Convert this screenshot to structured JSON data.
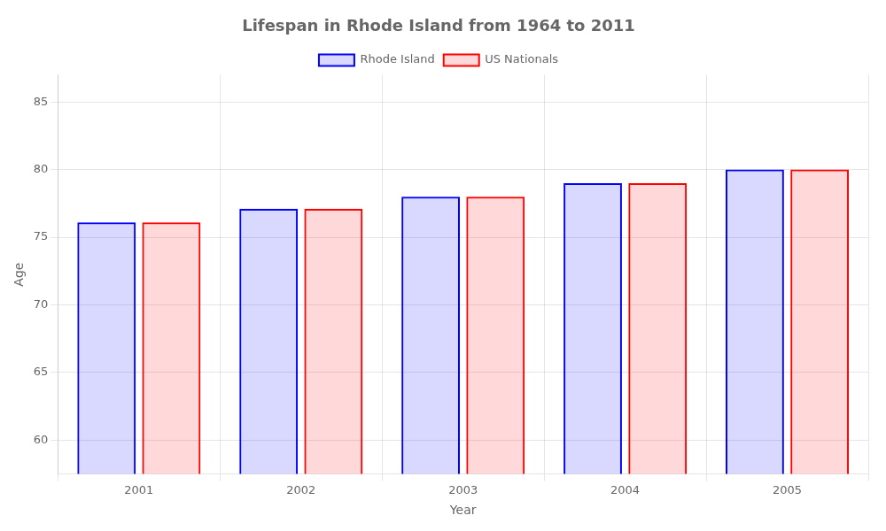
{
  "chart_data": {
    "type": "bar",
    "title": "Lifespan in Rhode Island from 1964 to 2011",
    "x_label": "Year",
    "y_label": "Age",
    "categories": [
      "2001",
      "2002",
      "2003",
      "2004",
      "2005"
    ],
    "series": [
      {
        "name": "Rhode Island",
        "color": "#0000ff",
        "values": [
          76.1,
          77.1,
          78.0,
          79.0,
          80.0
        ]
      },
      {
        "name": "US Nationals",
        "color": "#ff0000",
        "values": [
          76.1,
          77.1,
          78.0,
          79.0,
          80.0
        ]
      }
    ],
    "ylim": [
      57.5,
      87
    ],
    "yticks": [
      60,
      65,
      70,
      75,
      80,
      85
    ],
    "grid": true,
    "legend": "top"
  }
}
